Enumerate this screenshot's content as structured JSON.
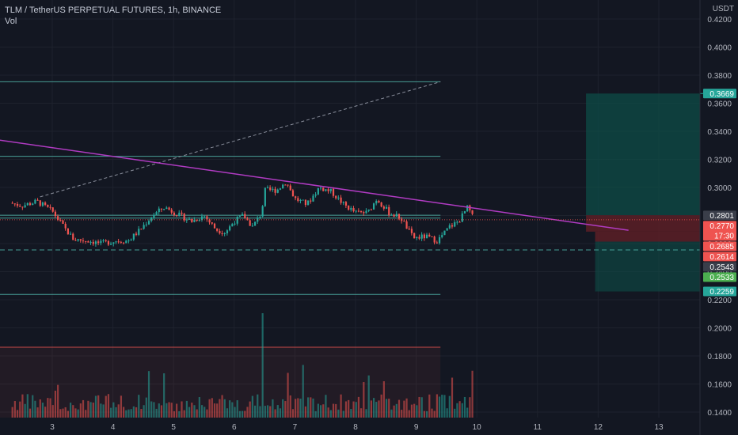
{
  "chart_title": "TLM / TetherUS PERPETUAL FUTURES, 1h, BINANCE",
  "volume_label": "Vol",
  "currency": "USDT",
  "colors": {
    "background": "#131722",
    "up": "#26a69a",
    "down": "#ef5350",
    "trendline": "#b03bc2",
    "level_line": "#4fb4a8",
    "profit_zone": "#0e4c47",
    "loss_zone": "#5c1e26"
  },
  "chart_data": {
    "type": "candlestick",
    "title": "TLM / TetherUS PERPETUAL FUTURES, 1h, BINANCE",
    "x_ticks": [
      "3",
      "4",
      "5",
      "6",
      "7",
      "8",
      "9",
      "10",
      "11",
      "12",
      "13"
    ],
    "y_ticks": [
      "0.4200",
      "0.4000",
      "0.3800",
      "0.3600",
      "0.3400",
      "0.3200",
      "0.3000",
      "0.2800",
      "0.2600",
      "0.2400",
      "0.2200",
      "0.2000",
      "0.1800",
      "0.1600",
      "0.1400"
    ],
    "ylim": [
      0.136,
      0.422
    ],
    "last_close": 0.277,
    "countdown": "17:30",
    "series": [
      {
        "name": "price-path",
        "description": "approximate hourly close path",
        "points": [
          [
            2.3,
            0.289
          ],
          [
            2.5,
            0.287
          ],
          [
            2.75,
            0.29
          ],
          [
            3.0,
            0.283
          ],
          [
            3.2,
            0.271
          ],
          [
            3.35,
            0.263
          ],
          [
            3.6,
            0.262
          ],
          [
            3.8,
            0.26
          ],
          [
            4.05,
            0.262
          ],
          [
            4.25,
            0.262
          ],
          [
            4.45,
            0.27
          ],
          [
            4.65,
            0.28
          ],
          [
            4.85,
            0.286
          ],
          [
            5.1,
            0.28
          ],
          [
            5.3,
            0.276
          ],
          [
            5.5,
            0.28
          ],
          [
            5.7,
            0.27
          ],
          [
            5.85,
            0.268
          ],
          [
            6.0,
            0.276
          ],
          [
            6.15,
            0.28
          ],
          [
            6.3,
            0.272
          ],
          [
            6.45,
            0.282
          ],
          [
            6.5,
            0.298
          ],
          [
            6.7,
            0.298
          ],
          [
            6.85,
            0.304
          ],
          [
            7.0,
            0.292
          ],
          [
            7.2,
            0.288
          ],
          [
            7.4,
            0.3
          ],
          [
            7.6,
            0.297
          ],
          [
            7.8,
            0.288
          ],
          [
            8.0,
            0.282
          ],
          [
            8.2,
            0.282
          ],
          [
            8.35,
            0.292
          ],
          [
            8.55,
            0.282
          ],
          [
            8.75,
            0.278
          ],
          [
            8.95,
            0.264
          ],
          [
            9.15,
            0.265
          ],
          [
            9.35,
            0.262
          ],
          [
            9.55,
            0.272
          ],
          [
            9.7,
            0.276
          ],
          [
            9.85,
            0.286
          ],
          [
            9.95,
            0.277
          ]
        ]
      }
    ],
    "price_labels": [
      {
        "value": 0.3669,
        "text": "0.3669",
        "color": "#26a69a"
      },
      {
        "value": 0.2801,
        "text": "0.2801",
        "color": "#3a3e4a"
      },
      {
        "value": 0.277,
        "text": "0.2770",
        "color": "#ef5350"
      },
      {
        "value": 0.2685,
        "text": "0.2685",
        "color": "#ef5350"
      },
      {
        "value": 0.2614,
        "text": "0.2614",
        "color": "#ef5350"
      },
      {
        "value": 0.2543,
        "text": "0.2543",
        "color": "#3a3e4a"
      },
      {
        "value": 0.2533,
        "text": "0.2533",
        "color": "#4caf50"
      },
      {
        "value": 0.2259,
        "text": "0.2259",
        "color": "#26a69a"
      }
    ],
    "horizontal_levels": [
      0.3753,
      0.3222,
      0.2802,
      0.2782,
      0.2555,
      0.2238
    ],
    "dashed_level": 0.2555,
    "trendline": {
      "from": [
        2.0,
        0.3345
      ],
      "to": [
        12.5,
        0.2695
      ]
    },
    "projection_line": {
      "from": [
        2.8,
        0.2933
      ],
      "to": [
        9.4,
        0.3753
      ]
    }
  }
}
